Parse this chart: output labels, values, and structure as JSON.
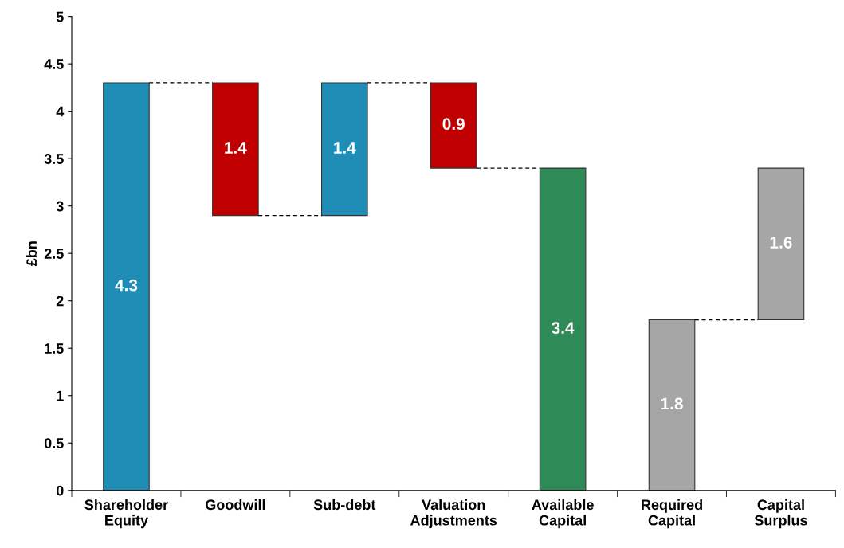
{
  "chart_data": {
    "type": "bar",
    "ylabel": "£bn",
    "categories": [
      "Shareholder\nEquity",
      "Goodwill",
      "Sub-debt",
      "Valuation\nAdjustments",
      "Available\nCapital",
      "Required\nCapital",
      "Capital\nSurplus"
    ],
    "values": [
      4.3,
      1.4,
      1.4,
      0.9,
      3.4,
      1.8,
      1.6
    ],
    "base": [
      0,
      2.9,
      2.9,
      3.4,
      0,
      0,
      1.8
    ],
    "colors": [
      "#1f8db5",
      "#c00000",
      "#1f8db5",
      "#c00000",
      "#2e8b57",
      "#a6a6a6",
      "#a6a6a6"
    ],
    "ylim": [
      0,
      5
    ],
    "yticks": [
      0,
      0.5,
      1,
      1.5,
      2,
      2.5,
      3,
      3.5,
      4,
      4.5,
      5
    ],
    "data_labels": true,
    "grid": false,
    "legend": false
  }
}
